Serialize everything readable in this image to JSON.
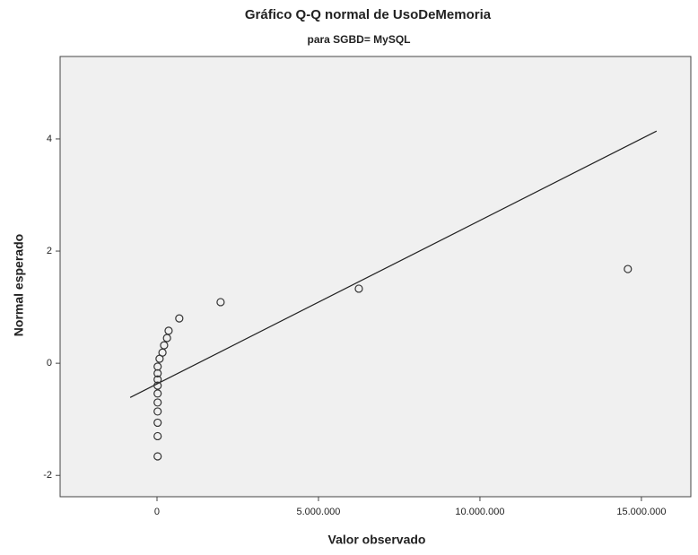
{
  "chart_data": {
    "type": "scatter",
    "title": "Gráfico Q-Q normal de UsoDeMemoria",
    "subtitle": "para SGBD= MySQL",
    "xlabel": "Valor observado",
    "ylabel": "Normal esperado",
    "x": [
      20000,
      20000,
      20000,
      20000,
      20000,
      20000,
      20000,
      20000,
      20000,
      20000,
      80000,
      170000,
      220000,
      310000,
      360000,
      690000,
      1970000,
      6250000,
      14580000
    ],
    "y": [
      -1.66,
      -1.3,
      -1.06,
      -0.86,
      -0.7,
      -0.54,
      -0.4,
      -0.29,
      -0.18,
      -0.06,
      0.08,
      0.19,
      0.32,
      0.45,
      0.58,
      0.8,
      1.09,
      1.33,
      1.68
    ],
    "color": "#333333",
    "reference_line": {
      "x": [
        -830000,
        15470000
      ],
      "y": [
        -0.61,
        4.14
      ]
    },
    "xlim": [
      -3000000,
      16530000
    ],
    "ylim": [
      -2.38,
      5.47
    ],
    "xticks": [
      0,
      {
        "value": 5000000,
        "label": "5.000.000"
      },
      {
        "value": 10000000,
        "label": "10.000.000"
      },
      {
        "value": 15000000,
        "label": "15.000.000"
      }
    ],
    "yticks": [
      -2,
      0,
      2,
      4
    ],
    "grid": false
  }
}
